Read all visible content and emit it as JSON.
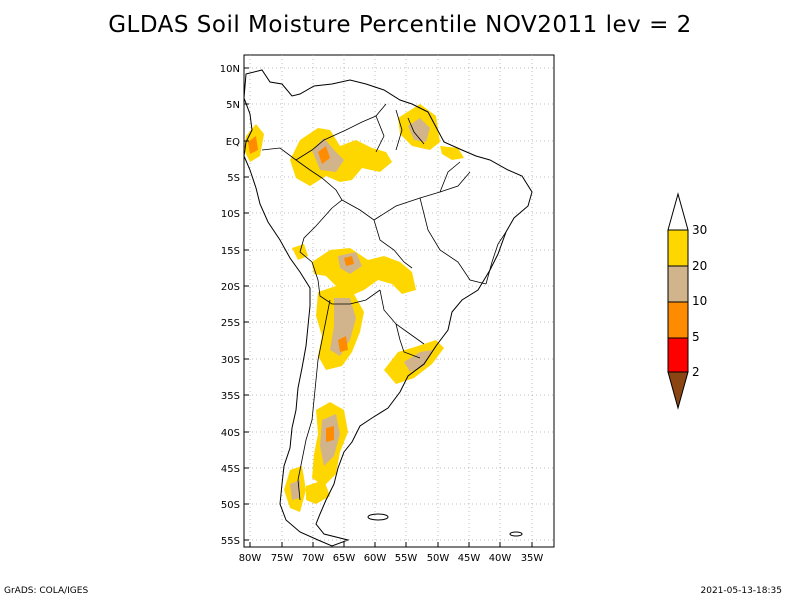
{
  "title": "GLDAS Soil Moisture Percentile NOV2011 lev = 2",
  "axes": {
    "lat_labels": [
      "10N",
      "5N",
      "EQ",
      "5S",
      "10S",
      "15S",
      "20S",
      "25S",
      "30S",
      "35S",
      "40S",
      "45S",
      "50S",
      "55S"
    ],
    "lon_labels": [
      "80W",
      "75W",
      "70W",
      "65W",
      "60W",
      "55W",
      "50W",
      "45W",
      "40W",
      "35W"
    ],
    "lon_range": [
      -81,
      -33
    ],
    "lat_range": [
      -56,
      11
    ],
    "grid": "dotted"
  },
  "legend": {
    "placement": "right",
    "colors": {
      "lt2": "#8b4513",
      "2-5": "#ff0000",
      "5-10": "#ff8c00",
      "10-20": "#d2b48c",
      "20-30": "#ffd700",
      "gt30": "#ffffff"
    },
    "labels": [
      "30",
      "20",
      "10",
      "5",
      "2"
    ]
  },
  "footer": {
    "left": "GrADS: COLA/IGES",
    "right": "2021-05-13-18:35"
  }
}
